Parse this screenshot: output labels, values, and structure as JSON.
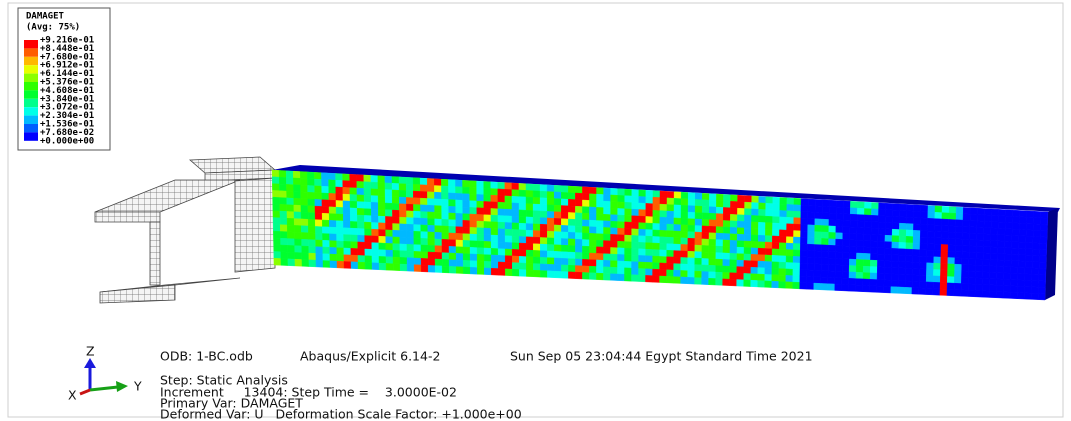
{
  "legend": {
    "title": "DAMAGET",
    "subtitle": "(Avg: 75%)",
    "labels": [
      "+9.216e-01",
      "+8.448e-01",
      "+7.680e-01",
      "+6.912e-01",
      "+6.144e-01",
      "+5.376e-01",
      "+4.608e-01",
      "+3.840e-01",
      "+3.072e-01",
      "+2.304e-01",
      "+1.536e-01",
      "+7.680e-02",
      "+0.000e+00"
    ],
    "colors": [
      "#ff0000",
      "#ff5d00",
      "#ffb900",
      "#e8ff00",
      "#8cff00",
      "#2eff00",
      "#00ff2e",
      "#00ff8c",
      "#00ffe8",
      "#00b9ff",
      "#005dff",
      "#0000ff"
    ]
  },
  "info": {
    "odb": "ODB: 1-BC.odb",
    "solver": "Abaqus/Explicit 6.14-2",
    "date": "Sun Sep 05 23:04:44 Egypt Standard Time 2021",
    "step": "Step: Static Analysis",
    "increment": "Increment     13404: Step Time =    3.0000E-02",
    "primary": "Primary Var: DAMAGET",
    "deformed": "Deformed Var: U   Deformation Scale Factor: +1.000e+00"
  },
  "triad": {
    "z": "Z",
    "y": "Y",
    "x": "X"
  }
}
